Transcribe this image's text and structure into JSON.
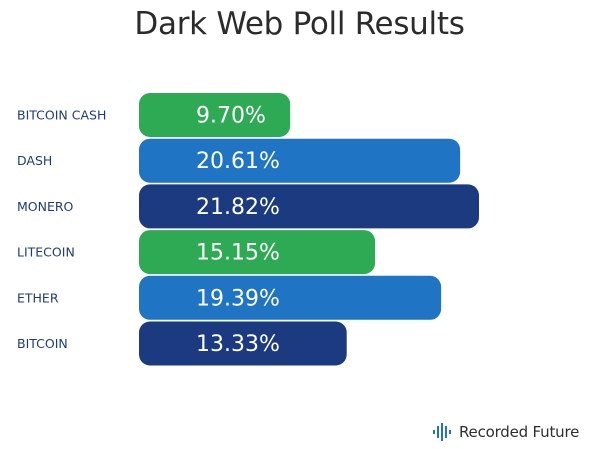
{
  "chart_data": {
    "type": "bar",
    "orientation": "horizontal",
    "title": "Dark Web Poll Results",
    "categories": [
      "BITCOIN CASH",
      "DASH",
      "MONERO",
      "LITECOIN",
      "ETHER",
      "BITCOIN"
    ],
    "values": [
      9.7,
      20.61,
      21.82,
      15.15,
      19.39,
      13.33
    ],
    "value_labels": [
      "9.70%",
      "20.61%",
      "21.82%",
      "15.15%",
      "19.39%",
      "13.33%"
    ],
    "colors": [
      "#2eaa55",
      "#1f74c4",
      "#1c3a80",
      "#2eaa55",
      "#1f74c4",
      "#1c3a80"
    ],
    "xlim": [
      0,
      21.82
    ],
    "grid": false,
    "legend": "none"
  },
  "brand": {
    "name": "Recorded Future",
    "icon": "recorded-future-logo-icon"
  },
  "colors": {
    "green": "#2eaa55",
    "blue": "#1f74c4",
    "navy": "#1c3a80",
    "label_text": "#1f3c7a"
  }
}
